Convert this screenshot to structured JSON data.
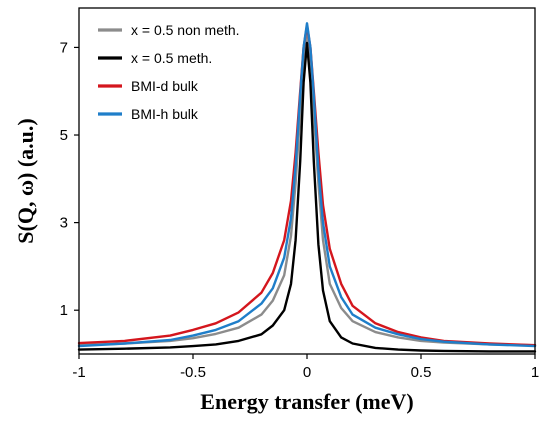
{
  "chart_data": {
    "type": "line",
    "xlabel": "Energy transfer (meV)",
    "ylabel": "S(Q, ω) (a.u.)",
    "xlim": [
      -1,
      1
    ],
    "ylim": [
      0,
      7.9
    ],
    "xticks": [
      -1,
      -0.5,
      0,
      0.5,
      1
    ],
    "xtick_labels": [
      "-1",
      "-0.5",
      "0",
      "0.5",
      "1"
    ],
    "yticks": [
      1,
      3,
      5,
      7
    ],
    "ytick_labels": [
      "1",
      "3",
      "5",
      "7"
    ],
    "grid": false,
    "legend_position": "top-left",
    "series": [
      {
        "name": "x = 0.5 non meth.",
        "color": "#8c8c8c",
        "x": [
          -1,
          -0.8,
          -0.6,
          -0.5,
          -0.4,
          -0.3,
          -0.2,
          -0.15,
          -0.1,
          -0.07,
          -0.05,
          -0.03,
          -0.015,
          0,
          0.015,
          0.03,
          0.05,
          0.07,
          0.1,
          0.15,
          0.2,
          0.3,
          0.4,
          0.5,
          0.6,
          0.8,
          1
        ],
        "y": [
          0.2,
          0.24,
          0.3,
          0.36,
          0.46,
          0.6,
          0.9,
          1.22,
          1.8,
          2.7,
          3.9,
          5.5,
          6.7,
          7.3,
          6.7,
          5.5,
          3.9,
          2.6,
          1.6,
          1.05,
          0.75,
          0.5,
          0.38,
          0.3,
          0.26,
          0.22,
          0.2
        ]
      },
      {
        "name": "x = 0.5 meth.",
        "color": "#000000",
        "x": [
          -1,
          -0.8,
          -0.6,
          -0.5,
          -0.4,
          -0.3,
          -0.2,
          -0.15,
          -0.1,
          -0.07,
          -0.05,
          -0.03,
          -0.015,
          0,
          0.015,
          0.03,
          0.05,
          0.07,
          0.1,
          0.15,
          0.2,
          0.3,
          0.4,
          0.5,
          0.6,
          0.8,
          1
        ],
        "y": [
          0.1,
          0.12,
          0.15,
          0.18,
          0.22,
          0.3,
          0.45,
          0.65,
          1.0,
          1.6,
          2.6,
          4.4,
          6.2,
          7.1,
          6.2,
          4.4,
          2.5,
          1.45,
          0.75,
          0.38,
          0.24,
          0.14,
          0.1,
          0.08,
          0.07,
          0.06,
          0.06
        ]
      },
      {
        "name": "BMI-d bulk",
        "color": "#d4161d",
        "x": [
          -1,
          -0.8,
          -0.6,
          -0.5,
          -0.4,
          -0.3,
          -0.2,
          -0.15,
          -0.1,
          -0.07,
          -0.05,
          -0.03,
          -0.015,
          0,
          0.015,
          0.03,
          0.05,
          0.07,
          0.1,
          0.15,
          0.2,
          0.3,
          0.4,
          0.5,
          0.6,
          0.8,
          1
        ],
        "y": [
          0.25,
          0.3,
          0.42,
          0.55,
          0.7,
          0.95,
          1.4,
          1.85,
          2.6,
          3.5,
          4.6,
          6.0,
          7.0,
          7.5,
          7.0,
          6.0,
          4.6,
          3.4,
          2.4,
          1.6,
          1.1,
          0.7,
          0.5,
          0.38,
          0.3,
          0.24,
          0.2
        ]
      },
      {
        "name": "BMI-h bulk",
        "color": "#1f7ec9",
        "x": [
          -1,
          -0.8,
          -0.6,
          -0.5,
          -0.4,
          -0.3,
          -0.2,
          -0.15,
          -0.1,
          -0.07,
          -0.05,
          -0.03,
          -0.015,
          0,
          0.015,
          0.03,
          0.05,
          0.07,
          0.1,
          0.15,
          0.2,
          0.3,
          0.4,
          0.5,
          0.6,
          0.8,
          1
        ],
        "y": [
          0.18,
          0.24,
          0.32,
          0.42,
          0.55,
          0.75,
          1.15,
          1.5,
          2.2,
          3.1,
          4.3,
          5.9,
          7.0,
          7.55,
          7.0,
          5.9,
          4.2,
          3.0,
          2.0,
          1.3,
          0.9,
          0.6,
          0.45,
          0.34,
          0.28,
          0.22,
          0.18
        ]
      }
    ]
  }
}
